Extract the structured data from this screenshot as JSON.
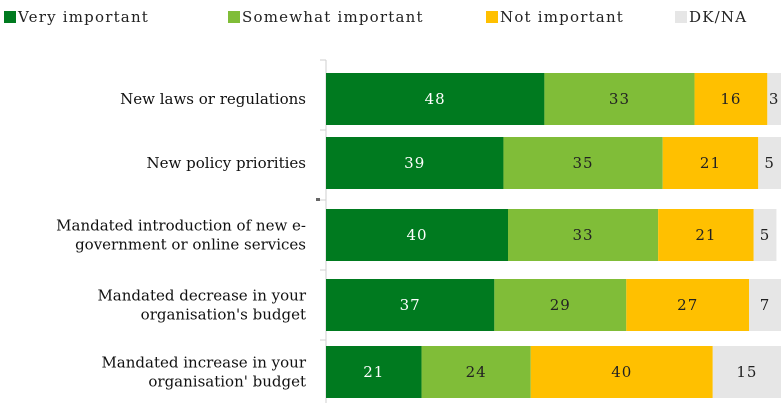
{
  "chart_data": {
    "type": "bar",
    "orientation": "horizontal",
    "stacked": true,
    "percent_scale": true,
    "legend_position": "top",
    "grid": false,
    "xlim": [
      0,
      100
    ],
    "categories": [
      [
        "New laws or regulations"
      ],
      [
        "New policy priorities"
      ],
      [
        "Mandated introduction of new e-",
        "government or online services"
      ],
      [
        "Mandated decrease in your",
        "organisation's budget"
      ],
      [
        "Mandated increase in your",
        "organisation' budget"
      ]
    ],
    "series": [
      {
        "name": "Very important",
        "color": "#007a1f",
        "label_color": "#ffffff",
        "values": [
          48,
          39,
          40,
          37,
          21
        ]
      },
      {
        "name": "Somewhat important",
        "color": "#80bd38",
        "label_color": "#222222",
        "values": [
          33,
          35,
          33,
          29,
          24
        ]
      },
      {
        "name": "Not important",
        "color": "#ffc000",
        "label_color": "#222222",
        "values": [
          16,
          21,
          21,
          27,
          40
        ]
      },
      {
        "name": "DK/NA",
        "color": "#e6e6e6",
        "label_color": "#222222",
        "values": [
          3,
          5,
          5,
          7,
          15
        ]
      }
    ]
  }
}
